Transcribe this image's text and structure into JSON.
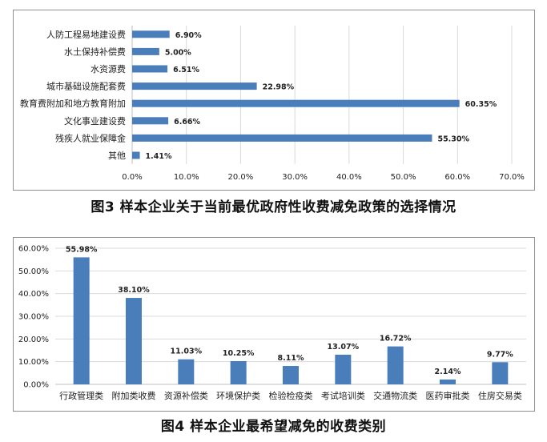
{
  "captions": {
    "figure3": "图3 样本企业关于当前最优政府性收费减免政策的选择情况",
    "figure4": "图4 样本企业最希望减免的收费类别"
  },
  "colors": {
    "bar": "#4a7ebb",
    "grid": "#d9d9d9",
    "axis": "#bfbfbf"
  },
  "chart_data": [
    {
      "type": "bar",
      "orientation": "horizontal",
      "title": "",
      "categories": [
        "人防工程易地建设费",
        "水土保持补偿费",
        "水资源费",
        "城市基础设施配套费",
        "教育费附加和地方教育附加",
        "文化事业建设费",
        "残疾人就业保障金",
        "其他"
      ],
      "values": [
        6.9,
        5.0,
        6.51,
        22.98,
        60.35,
        6.66,
        55.3,
        1.41
      ],
      "value_labels": [
        "6.90%",
        "5.00%",
        "6.51%",
        "22.98%",
        "60.35%",
        "6.66%",
        "55.30%",
        "1.41%"
      ],
      "xlim": [
        0,
        70
      ],
      "tick_labels": [
        "0.0%",
        "10.0%",
        "20.0%",
        "30.0%",
        "40.0%",
        "50.0%",
        "60.0%",
        "70.0%"
      ],
      "grid": true
    },
    {
      "type": "bar",
      "orientation": "vertical",
      "title": "",
      "categories": [
        "行政管理类",
        "附加类收费",
        "资源补偿类",
        "环境保护类",
        "检验检疫类",
        "考试培训类",
        "交通物流类",
        "医药审批类",
        "住房交易类"
      ],
      "values": [
        55.98,
        38.1,
        11.03,
        10.25,
        8.11,
        13.07,
        16.72,
        2.14,
        9.77
      ],
      "value_labels": [
        "55.98%",
        "38.10%",
        "11.03%",
        "10.25%",
        "8.11%",
        "13.07%",
        "16.72%",
        "2.14%",
        "9.77%"
      ],
      "ylim": [
        0,
        60
      ],
      "tick_labels": [
        "0.00%",
        "10.00%",
        "20.00%",
        "30.00%",
        "40.00%",
        "50.00%",
        "60.00%"
      ],
      "grid": true
    }
  ]
}
